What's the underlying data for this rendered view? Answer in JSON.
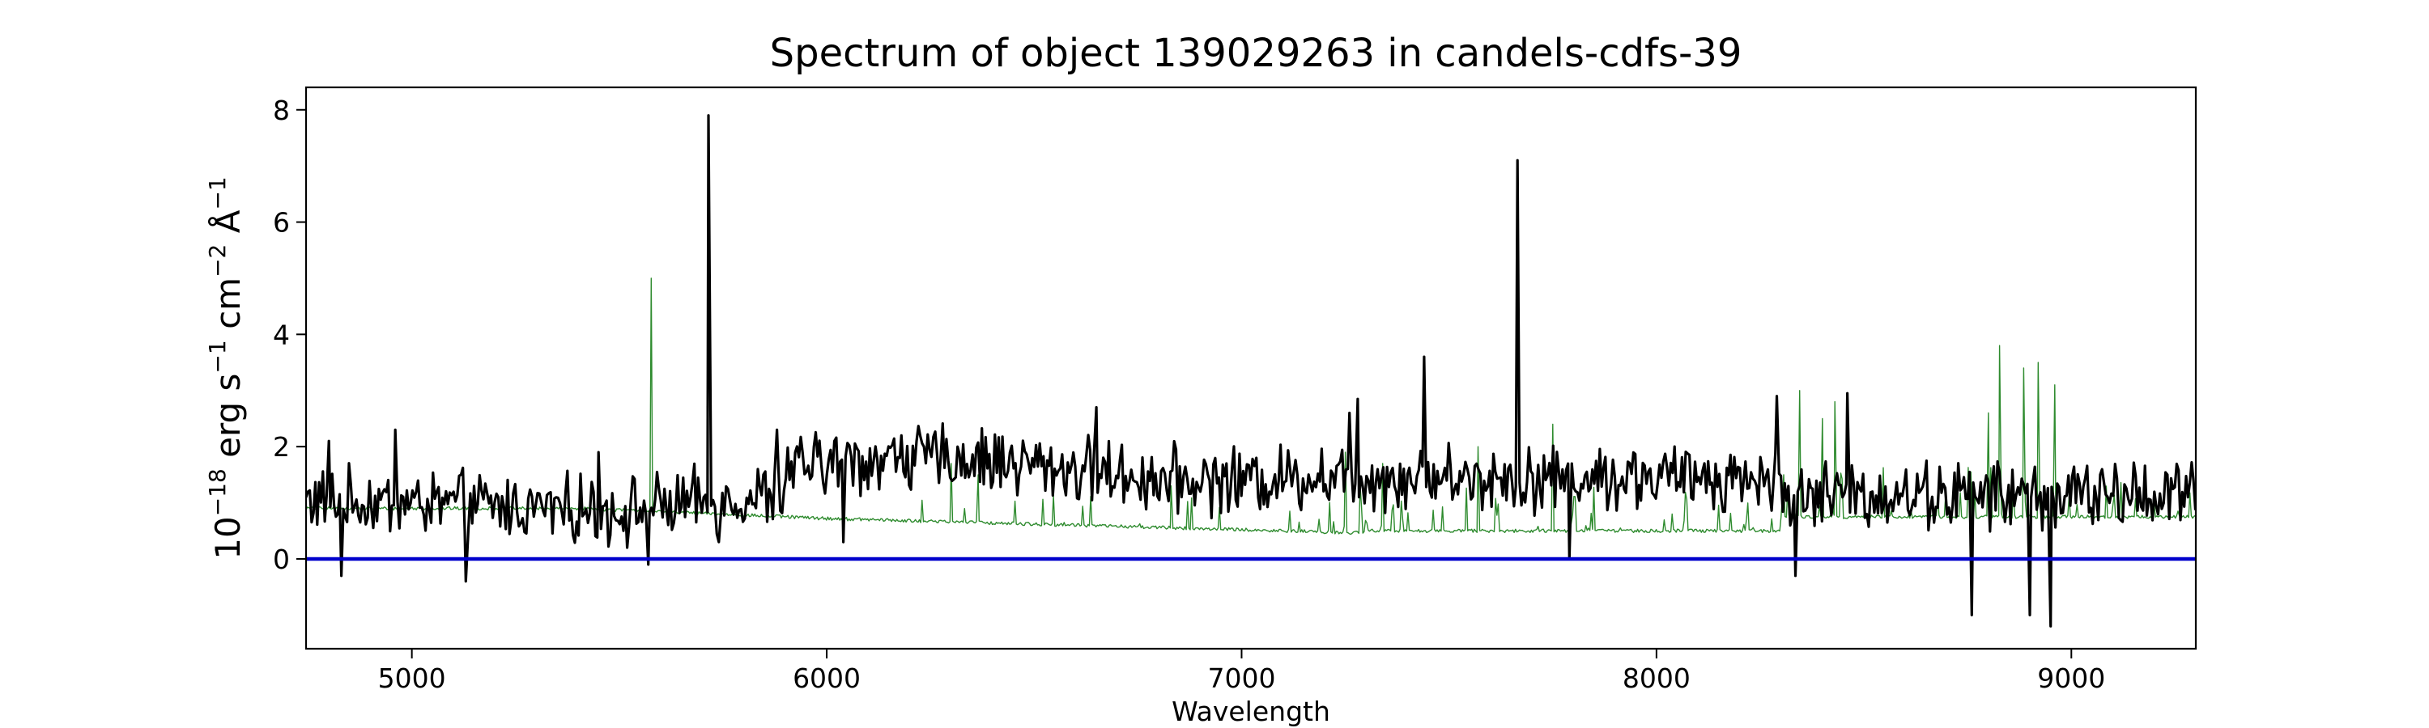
{
  "chart_data": {
    "type": "line",
    "title": "Spectrum of object 139029263 in candels-cdfs-39",
    "xlabel": "Wavelength",
    "ylabel": {
      "base": "10",
      "exp1": "−18",
      "mid1": " erg s",
      "exp2": "−1",
      "mid2": " cm",
      "exp3": "−2",
      "mid3": " Å",
      "exp4": "−1"
    },
    "xlim": [
      4745,
      9300
    ],
    "ylim": [
      -1.6,
      8.4
    ],
    "xticks": [
      5000,
      6000,
      7000,
      8000,
      9000
    ],
    "yticks": [
      0,
      2,
      4,
      6,
      8
    ],
    "grid": false,
    "series": [
      {
        "color": "#000000",
        "features": [
          {
            "x": 4800,
            "y": 2.1
          },
          {
            "x": 4830,
            "y": -0.3
          },
          {
            "x": 4960,
            "y": 2.3
          },
          {
            "x": 5130,
            "y": -0.4
          },
          {
            "x": 5450,
            "y": 1.9
          },
          {
            "x": 5570,
            "y": -0.1
          },
          {
            "x": 5715,
            "y": 7.9
          },
          {
            "x": 5740,
            "y": 0.3
          },
          {
            "x": 5880,
            "y": 2.3
          },
          {
            "x": 6040,
            "y": 0.3
          },
          {
            "x": 6180,
            "y": 2.2
          },
          {
            "x": 6650,
            "y": 2.7
          },
          {
            "x": 7260,
            "y": 2.6
          },
          {
            "x": 7280,
            "y": 2.85
          },
          {
            "x": 7440,
            "y": 3.6
          },
          {
            "x": 7665,
            "y": 7.1
          },
          {
            "x": 7790,
            "y": 0.0
          },
          {
            "x": 8290,
            "y": 2.9
          },
          {
            "x": 8335,
            "y": -0.3
          },
          {
            "x": 8460,
            "y": 2.95
          },
          {
            "x": 8760,
            "y": -1.0
          },
          {
            "x": 8900,
            "y": -1.0
          },
          {
            "x": 8950,
            "y": -1.2
          }
        ]
      },
      {
        "color": "#2e8b2e",
        "features": [
          {
            "x": 5577,
            "y": 5.0
          },
          {
            "x": 6300,
            "y": 1.7
          },
          {
            "x": 6365,
            "y": 1.5
          },
          {
            "x": 6830,
            "y": 1.3
          },
          {
            "x": 7250,
            "y": 1.9
          },
          {
            "x": 7340,
            "y": 1.7
          },
          {
            "x": 7570,
            "y": 2.0
          },
          {
            "x": 7750,
            "y": 2.4
          },
          {
            "x": 8345,
            "y": 3.0
          },
          {
            "x": 8400,
            "y": 2.5
          },
          {
            "x": 8430,
            "y": 2.8
          },
          {
            "x": 8800,
            "y": 2.6
          },
          {
            "x": 8827,
            "y": 3.8
          },
          {
            "x": 8885,
            "y": 3.4
          },
          {
            "x": 8920,
            "y": 3.5
          },
          {
            "x": 8960,
            "y": 3.1
          }
        ]
      },
      {
        "color": "#0000cc",
        "features": [
          {
            "x": 4745,
            "y": 0
          },
          {
            "x": 9300,
            "y": 0
          }
        ]
      }
    ]
  }
}
